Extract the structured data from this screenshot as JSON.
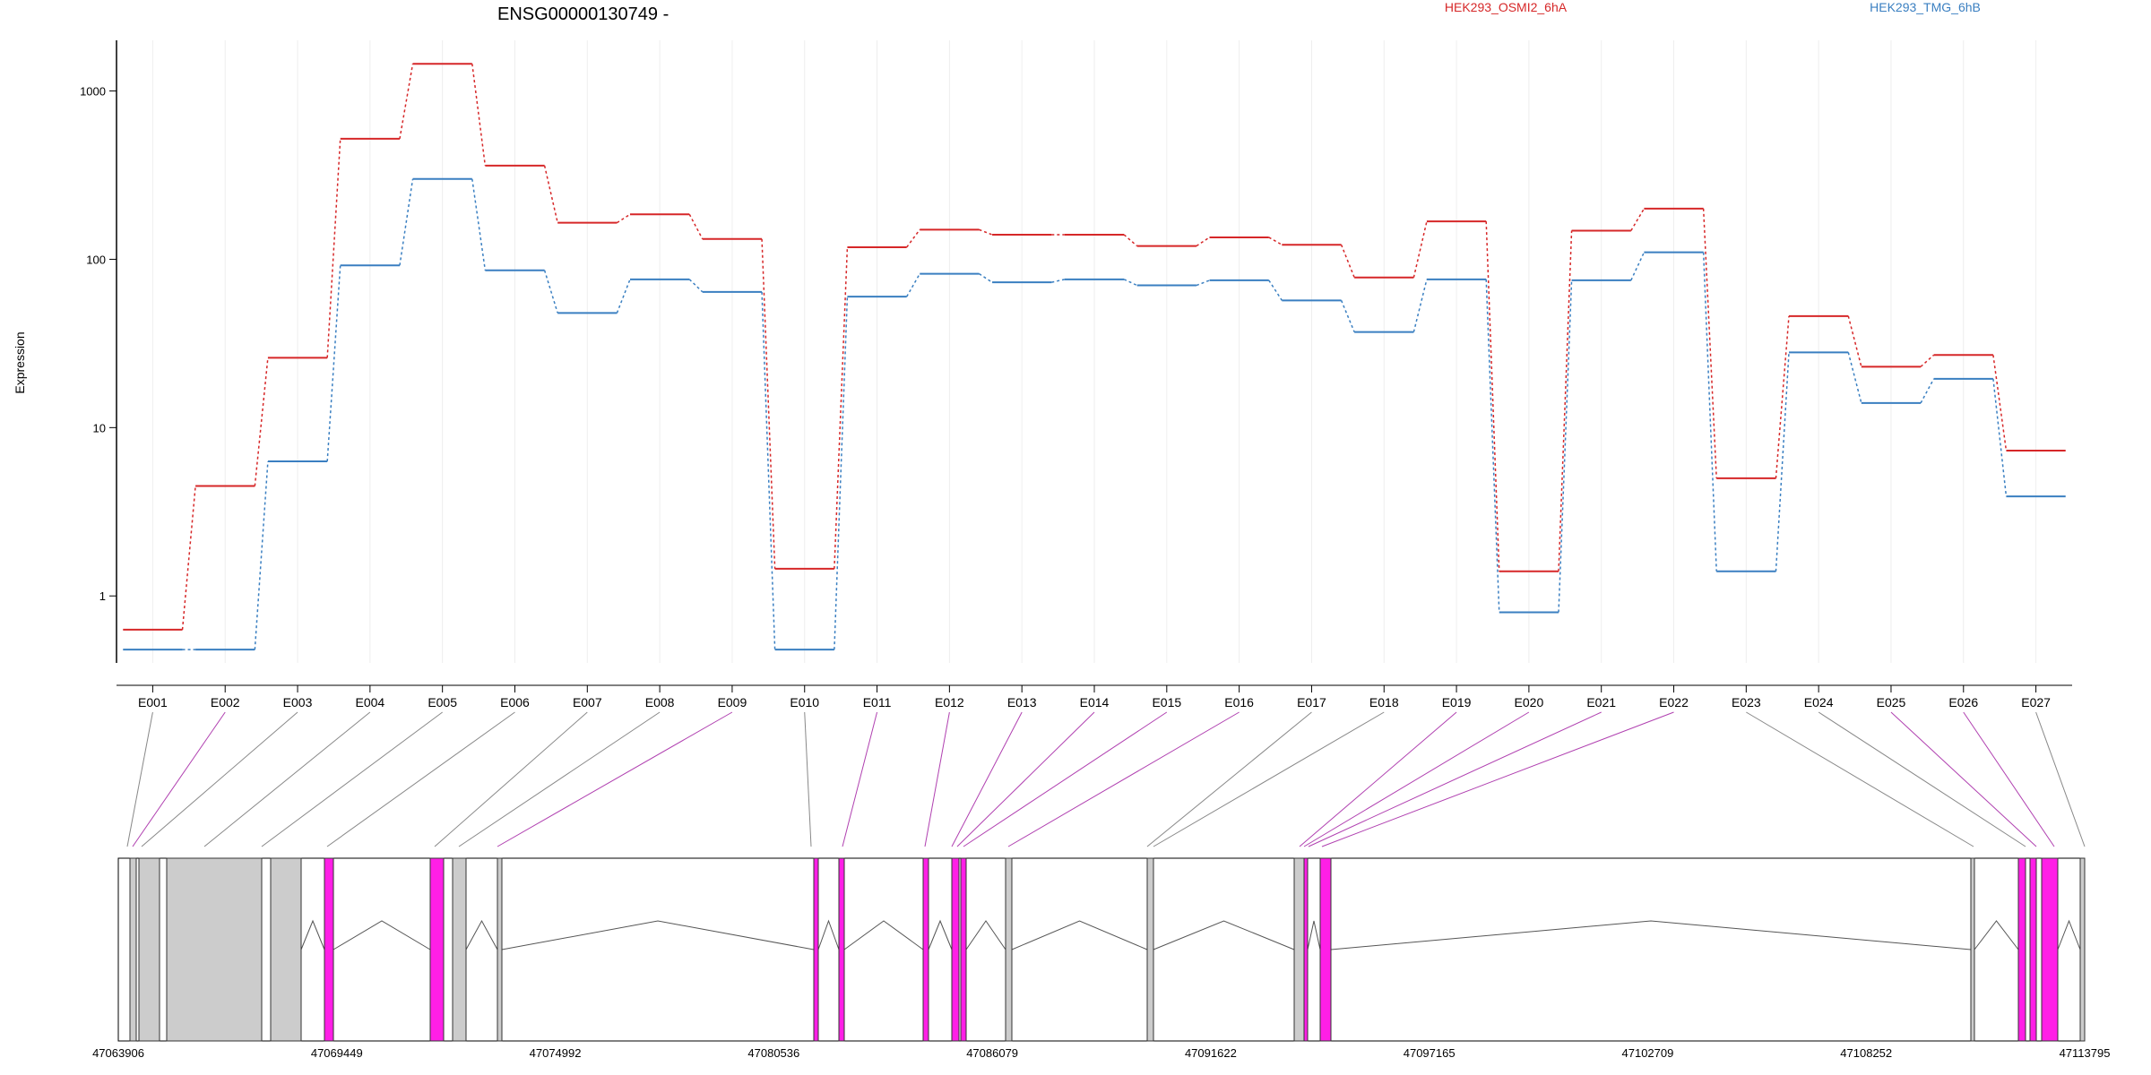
{
  "chart_data": {
    "type": "line",
    "title": "ENSG00000130749 -",
    "ylabel": "Expression",
    "yscale": "log",
    "ylim": [
      0.4,
      2000
    ],
    "yticks": [
      1,
      10,
      100,
      1000
    ],
    "ytick_labels": [
      "1",
      "10",
      "100",
      "1000"
    ],
    "grid": "vertical-light",
    "legend_position": "top",
    "categories": [
      "E001",
      "E002",
      "E003",
      "E004",
      "E005",
      "E006",
      "E007",
      "E008",
      "E009",
      "E010",
      "E011",
      "E012",
      "E013",
      "E014",
      "E015",
      "E016",
      "E017",
      "E018",
      "E019",
      "E020",
      "E021",
      "E022",
      "E023",
      "E024",
      "E025",
      "E026",
      "E027"
    ],
    "series": [
      {
        "name": "HEK293_OSMI2_6hA",
        "color": "#d62728",
        "values": [
          0.63,
          4.5,
          26,
          520,
          1450,
          360,
          165,
          185,
          132,
          1.45,
          118,
          150,
          140,
          140,
          120,
          135,
          122,
          78,
          168,
          1.4,
          148,
          200,
          5,
          46,
          23,
          27,
          7.3
        ]
      },
      {
        "name": "HEK293_TMG_6hB",
        "color": "#3a7fc1",
        "values": [
          0.48,
          0.48,
          6.3,
          92,
          300,
          86,
          48,
          76,
          64,
          0.48,
          60,
          82,
          73,
          76,
          70,
          75,
          57,
          37,
          76,
          0.8,
          75,
          110,
          1.4,
          28,
          14,
          19.5,
          3.9
        ]
      }
    ],
    "exon_flags": [
      "normal",
      "special",
      "normal",
      "normal",
      "normal",
      "normal",
      "normal",
      "normal",
      "special",
      "normal",
      "special",
      "special",
      "special",
      "special",
      "special",
      "special",
      "normal",
      "normal",
      "special",
      "special",
      "special",
      "special",
      "normal",
      "normal",
      "special",
      "special",
      "normal"
    ],
    "genomic_ticks": [
      "47063906",
      "47069449",
      "47074992",
      "47080536",
      "47086079",
      "47091622",
      "47097165",
      "47102709",
      "47108252",
      "47113795"
    ],
    "colors": {
      "exon_normal": "#cccccc",
      "exon_special": "#ff1fe6",
      "connector_normal": "#888888",
      "connector_special": "#b040b0"
    }
  }
}
